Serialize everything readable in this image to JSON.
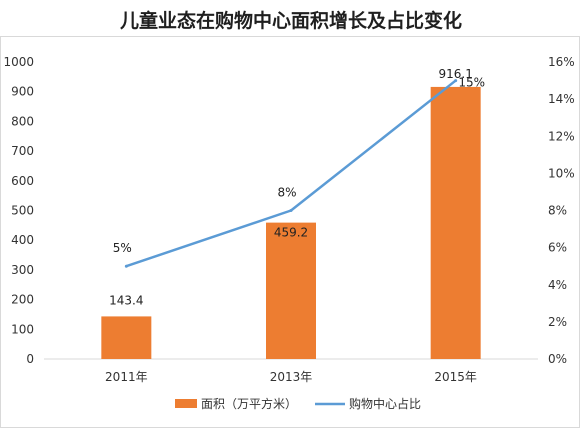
{
  "chart_data": {
    "type": "bar",
    "title": "儿童业态在购物中心面积增长及占比变化",
    "categories": [
      "2011年",
      "2013年",
      "2015年"
    ],
    "series": [
      {
        "name": "面积（万平方米）",
        "type": "bar",
        "axis": "left",
        "color": "#ED7D31",
        "values": [
          143.4,
          459.2,
          916.1
        ],
        "labels": [
          "143.4",
          "459.2",
          "916.1"
        ]
      },
      {
        "name": "购物中心占比",
        "type": "line",
        "axis": "right",
        "color": "#5B9BD5",
        "values": [
          5,
          8,
          15
        ],
        "labels": [
          "5%",
          "8%",
          "15%"
        ]
      }
    ],
    "y_left": {
      "ylim": [
        0,
        1000
      ],
      "ticks": [
        "0",
        "100",
        "200",
        "300",
        "400",
        "500",
        "600",
        "700",
        "800",
        "900",
        "1000"
      ]
    },
    "y_right": {
      "ylim": [
        0,
        16
      ],
      "ticks": [
        "0%",
        "2%",
        "4%",
        "6%",
        "8%",
        "10%",
        "12%",
        "14%",
        "16%"
      ]
    },
    "grid": false,
    "legend": "bottom"
  }
}
